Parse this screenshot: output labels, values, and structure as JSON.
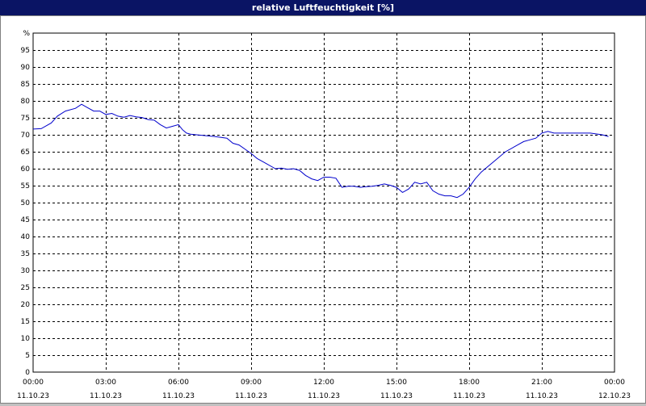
{
  "window": {
    "title": "relative Luftfeuchtigkeit [%]"
  },
  "colors": {
    "titlebar": "#0a1464",
    "series": "#0000cc",
    "grid": "#000000",
    "background": "#ffffff"
  },
  "chart_data": {
    "type": "line",
    "title": "relative Luftfeuchtigkeit [%]",
    "ylabel": "%",
    "xlabel": "",
    "ylim": [
      0,
      100
    ],
    "y_ticks": [
      0,
      5,
      10,
      15,
      20,
      25,
      30,
      35,
      40,
      45,
      50,
      55,
      60,
      65,
      70,
      75,
      80,
      85,
      90,
      95
    ],
    "x_ticks": [
      {
        "time": "00:00",
        "date": "11.10.23"
      },
      {
        "time": "03:00",
        "date": "11.10.23"
      },
      {
        "time": "06:00",
        "date": "11.10.23"
      },
      {
        "time": "09:00",
        "date": "11.10.23"
      },
      {
        "time": "12:00",
        "date": "11.10.23"
      },
      {
        "time": "15:00",
        "date": "11.10.23"
      },
      {
        "time": "18:00",
        "date": "11.10.23"
      },
      {
        "time": "21:00",
        "date": "11.10.23"
      },
      {
        "time": "00:00",
        "date": "12.10.23"
      }
    ],
    "grid": true,
    "grid_style": "dashed",
    "series": [
      {
        "x": [
          "00:00",
          "00:20",
          "00:45",
          "01:00",
          "01:20",
          "01:45",
          "02:00",
          "02:15",
          "02:30",
          "02:45",
          "03:00",
          "03:15",
          "03:30",
          "03:45",
          "04:00",
          "04:15",
          "04:30",
          "04:45",
          "05:00",
          "05:15",
          "05:30",
          "05:45",
          "06:00",
          "06:10",
          "06:20",
          "06:30",
          "06:45",
          "07:00",
          "07:30",
          "08:00",
          "08:15",
          "08:30",
          "09:00",
          "09:15",
          "09:30",
          "10:00",
          "10:15",
          "10:30",
          "10:45",
          "11:00",
          "11:15",
          "11:30",
          "11:45",
          "12:00",
          "12:15",
          "12:30",
          "12:45",
          "13:00",
          "13:15",
          "13:30",
          "13:45",
          "14:00",
          "14:15",
          "14:30",
          "14:45",
          "15:00",
          "15:15",
          "15:30",
          "15:45",
          "16:00",
          "16:15",
          "16:30",
          "16:45",
          "17:00",
          "17:15",
          "17:30",
          "17:45",
          "18:00",
          "18:15",
          "18:30",
          "18:45",
          "19:00",
          "19:30",
          "20:00",
          "20:15",
          "20:30",
          "20:45",
          "21:00",
          "21:15",
          "21:30",
          "22:00",
          "22:30",
          "23:00",
          "23:30",
          "23:45"
        ],
        "values": [
          71.7,
          71.8,
          73.5,
          75.5,
          77,
          77.8,
          79,
          78,
          77,
          77,
          76,
          76.3,
          75.5,
          75.2,
          75.7,
          75.3,
          75.1,
          74.5,
          74.3,
          73,
          72,
          72.5,
          73,
          71.5,
          70.5,
          70.2,
          70,
          69.8,
          69.5,
          69,
          67.5,
          67,
          64.5,
          63,
          62,
          60,
          60.2,
          59.8,
          60,
          59.5,
          58,
          57,
          56.5,
          57.5,
          57.5,
          57.2,
          54.5,
          54.8,
          54.8,
          54.5,
          54.7,
          54.8,
          55.1,
          55.5,
          55.1,
          54.5,
          53,
          54,
          56,
          55.5,
          56,
          53.5,
          52.5,
          52,
          52,
          51.5,
          52.5,
          54.5,
          57,
          59,
          60.5,
          62,
          65,
          67,
          68,
          68.5,
          69,
          70.5,
          71,
          70.5,
          70.5,
          70.5,
          70.5,
          70,
          69.5
        ]
      }
    ]
  }
}
